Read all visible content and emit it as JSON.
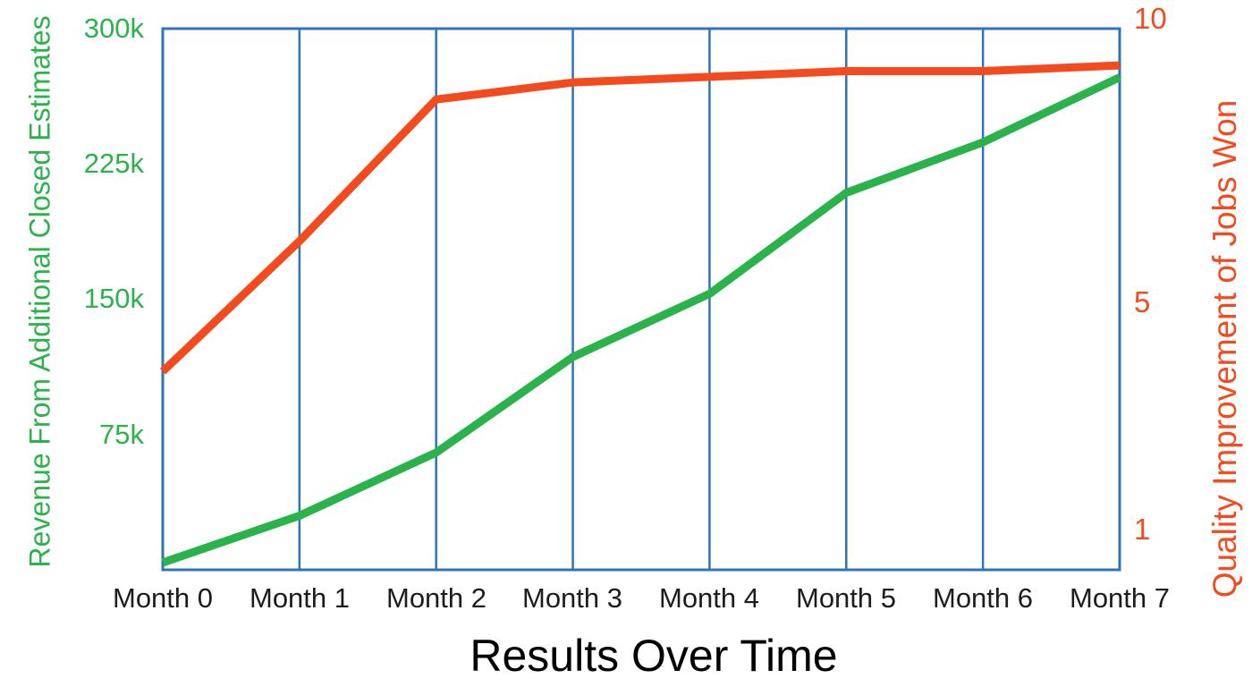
{
  "page": {
    "background": "#ffffff"
  },
  "chart_data": {
    "type": "line",
    "title": "Results Over Time",
    "categories": [
      "Month 0",
      "Month 1",
      "Month 2",
      "Month 3",
      "Month 4",
      "Month 5",
      "Month 6",
      "Month 7"
    ],
    "left_axis": {
      "label": "Revenue From Additional Closed Estimates",
      "tick_labels": [
        "300k",
        "225k",
        "150k",
        "75k"
      ],
      "tick_values": [
        300,
        225,
        150,
        75
      ],
      "ylim": [
        0,
        300
      ],
      "units": "thousands",
      "color": "#2bb34b"
    },
    "right_axis": {
      "label": "Quality Improvement of Jobs Won",
      "tick_labels": [
        "10",
        "5",
        "1"
      ],
      "tick_values": [
        10,
        5,
        1
      ],
      "ylim": [
        0.3,
        9.85
      ],
      "color": "#f34a1e"
    },
    "series": [
      {
        "name": "Revenue From Additional Closed Estimates",
        "axis": "left",
        "color": "#2bb34b",
        "values": [
          4,
          30,
          65,
          118,
          153,
          209,
          237,
          273
        ]
      },
      {
        "name": "Quality Improvement of Jobs Won",
        "axis": "right",
        "color": "#f34a1e",
        "values": [
          3.8,
          6.1,
          8.6,
          8.9,
          9.0,
          9.1,
          9.1,
          9.2
        ]
      }
    ],
    "grid": {
      "vertical": true,
      "horizontal": false,
      "color": "#2e74b8",
      "frame": true
    },
    "legend": {
      "visible": false
    },
    "title_color": "#000000",
    "x_tick_color": "#1c1c1c"
  }
}
